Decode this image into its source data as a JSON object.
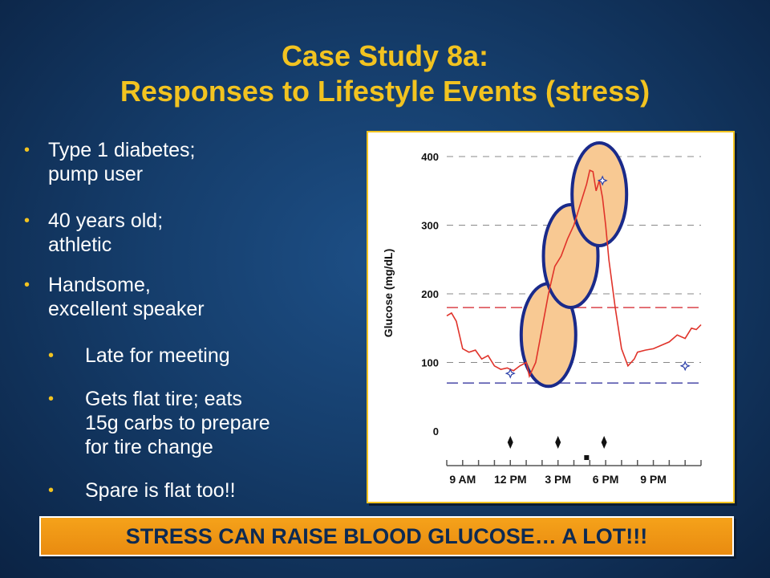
{
  "slide": {
    "title_line1": "Case Study 8a:",
    "title_line2": "Responses to Lifestyle Events (stress)",
    "banner": "STRESS CAN RAISE BLOOD GLUCOSE… A LOT!!!",
    "bullet_symbol": "•",
    "bullets": [
      {
        "line1": "Type 1 diabetes;",
        "line2": "pump user"
      },
      {
        "line1": "40 years old;",
        "line2": "athletic"
      },
      {
        "line1": "Handsome,",
        "line2": "excellent speaker"
      }
    ],
    "subbullets": [
      {
        "lines": [
          "Late for meeting"
        ]
      },
      {
        "lines": [
          "Gets flat tire; eats",
          "15g carbs to prepare",
          "for tire change"
        ]
      },
      {
        "lines": [
          "Spare is flat too!!"
        ]
      }
    ],
    "colors": {
      "title": "#f2c320",
      "banner_bg": "#f0961a",
      "banner_text": "#0d2a52"
    }
  },
  "chart_data": {
    "type": "line",
    "ylabel": "Glucose (mg/dL)",
    "ylim": [
      0,
      400
    ],
    "yticks": [
      0,
      100,
      200,
      300,
      400
    ],
    "xticks": [
      "9 AM",
      "12 PM",
      "3 PM",
      "6 PM",
      "9 PM"
    ],
    "xlim_hours": [
      8,
      24
    ],
    "xtick_hours": [
      9,
      12,
      15,
      18,
      21
    ],
    "target_high": 180,
    "target_low": 70,
    "series": [
      {
        "color": "#e0332a",
        "x": [
          8.0,
          8.3,
          8.6,
          9.0,
          9.4,
          9.8,
          10.2,
          10.6,
          11.0,
          11.4,
          11.8,
          12.2,
          12.6,
          13.0,
          13.2,
          13.6,
          14.0,
          14.4,
          14.8,
          15.2,
          15.6,
          16.0,
          16.4,
          16.8,
          17.0,
          17.2,
          17.4,
          17.6,
          17.8,
          18.0,
          18.2,
          18.6,
          19.0,
          19.4,
          19.8,
          20.0,
          20.5,
          21.0,
          21.5,
          22.0,
          22.5,
          23.0,
          23.4,
          23.7,
          24.0
        ],
        "y": [
          168,
          172,
          160,
          120,
          115,
          118,
          105,
          110,
          95,
          90,
          92,
          88,
          95,
          100,
          80,
          100,
          150,
          200,
          240,
          255,
          280,
          300,
          330,
          360,
          380,
          378,
          350,
          365,
          340,
          300,
          250,
          180,
          120,
          95,
          105,
          115,
          118,
          120,
          125,
          130,
          140,
          135,
          150,
          148,
          155
        ]
      }
    ],
    "markers": [
      {
        "x": 12.0,
        "y": 84,
        "symbol": "open-star"
      },
      {
        "x": 17.8,
        "y": 365,
        "symbol": "open-star"
      },
      {
        "x": 23.0,
        "y": 95,
        "symbol": "open-star"
      }
    ],
    "event_markers": [
      {
        "x": 12.0,
        "symbol": "diamond"
      },
      {
        "x": 15.0,
        "symbol": "diamond"
      },
      {
        "x": 17.9,
        "symbol": "diamond"
      },
      {
        "x": 16.8,
        "symbol": "square"
      }
    ],
    "highlight_ellipses": [
      {
        "cx": 14.4,
        "cy": 140
      },
      {
        "cx": 15.8,
        "cy": 255
      },
      {
        "cx": 17.6,
        "cy": 345
      }
    ]
  }
}
